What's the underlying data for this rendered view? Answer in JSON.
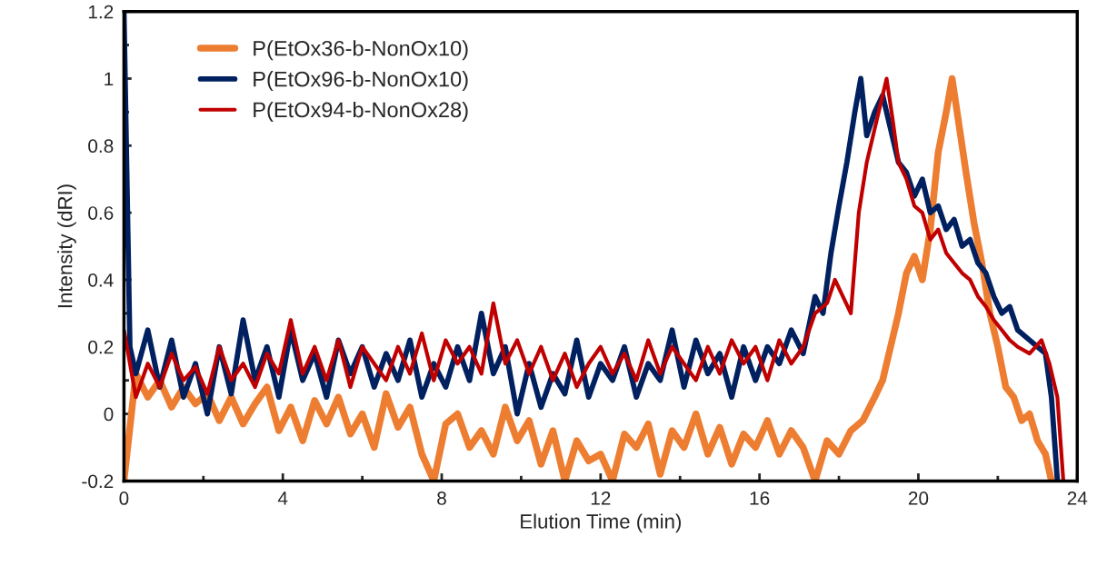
{
  "chart_data": {
    "type": "line",
    "xlabel": "Elution Time (min)",
    "ylabel": "Intensity (dRI)",
    "xlim": [
      0,
      24
    ],
    "xticks": [
      0,
      4,
      8,
      12,
      16,
      20,
      24
    ],
    "ylim": [
      -0.2,
      1.2
    ],
    "yticks": [
      -0.2,
      0,
      0.2,
      0.4,
      0.6,
      0.8,
      1,
      1.2
    ],
    "grid": false,
    "legend": "top left",
    "marker": "none",
    "line_style": "solid",
    "series": [
      {
        "name": "P(EtOx36-b-NonOx10)",
        "color": "#ed7d31",
        "x": [
          0.0,
          0.3,
          0.6,
          0.9,
          1.2,
          1.5,
          1.8,
          2.1,
          2.4,
          2.7,
          3.0,
          3.3,
          3.6,
          3.9,
          4.2,
          4.5,
          4.8,
          5.1,
          5.4,
          5.7,
          6.0,
          6.3,
          6.6,
          6.9,
          7.2,
          7.5,
          7.8,
          8.1,
          8.4,
          8.7,
          9.0,
          9.3,
          9.6,
          9.9,
          10.2,
          10.5,
          10.8,
          11.1,
          11.4,
          11.7,
          12.0,
          12.3,
          12.6,
          12.9,
          13.2,
          13.5,
          13.8,
          14.1,
          14.4,
          14.7,
          15.0,
          15.3,
          15.6,
          15.9,
          16.2,
          16.5,
          16.8,
          17.1,
          17.4,
          17.7,
          18.0,
          18.3,
          18.6,
          18.9,
          19.1,
          19.3,
          19.5,
          19.7,
          19.9,
          20.1,
          20.3,
          20.5,
          20.7,
          20.85,
          21.0,
          21.2,
          21.4,
          21.6,
          21.8,
          22.0,
          22.2,
          22.4,
          22.6,
          22.8,
          23.0,
          23.2,
          23.35
        ],
        "values": [
          -0.2,
          0.12,
          0.05,
          0.1,
          0.02,
          0.08,
          0.03,
          0.06,
          -0.02,
          0.05,
          -0.03,
          0.03,
          0.08,
          -0.05,
          0.02,
          -0.08,
          0.04,
          -0.03,
          0.05,
          -0.06,
          0.0,
          -0.1,
          0.06,
          -0.04,
          0.02,
          -0.12,
          -0.2,
          -0.03,
          0.0,
          -0.1,
          -0.05,
          -0.12,
          0.02,
          -0.08,
          -0.02,
          -0.15,
          -0.05,
          -0.2,
          -0.08,
          -0.14,
          -0.12,
          -0.2,
          -0.06,
          -0.1,
          -0.03,
          -0.18,
          -0.05,
          -0.1,
          0.0,
          -0.12,
          -0.04,
          -0.15,
          -0.06,
          -0.1,
          -0.02,
          -0.12,
          -0.05,
          -0.1,
          -0.2,
          -0.08,
          -0.12,
          -0.05,
          -0.02,
          0.05,
          0.1,
          0.2,
          0.3,
          0.42,
          0.47,
          0.4,
          0.55,
          0.78,
          0.9,
          1.0,
          0.88,
          0.72,
          0.57,
          0.45,
          0.3,
          0.2,
          0.08,
          0.05,
          -0.02,
          0.0,
          -0.08,
          -0.12,
          -0.2
        ]
      },
      {
        "name": "P(EtOx96-b-NonOx10)",
        "color": "#002060",
        "x": [
          0,
          0.15,
          0.3,
          0.6,
          0.9,
          1.2,
          1.5,
          1.8,
          2.1,
          2.4,
          2.7,
          3.0,
          3.3,
          3.6,
          3.9,
          4.2,
          4.5,
          4.8,
          5.1,
          5.4,
          5.7,
          6.0,
          6.3,
          6.6,
          6.9,
          7.2,
          7.5,
          7.8,
          8.1,
          8.4,
          8.7,
          9.0,
          9.3,
          9.6,
          9.9,
          10.2,
          10.5,
          10.8,
          11.1,
          11.4,
          11.7,
          12.0,
          12.3,
          12.6,
          12.9,
          13.2,
          13.5,
          13.8,
          14.1,
          14.4,
          14.7,
          15.0,
          15.3,
          15.6,
          15.9,
          16.2,
          16.5,
          16.8,
          17.1,
          17.4,
          17.6,
          17.8,
          18.0,
          18.2,
          18.4,
          18.55,
          18.7,
          18.9,
          19.1,
          19.3,
          19.5,
          19.7,
          19.9,
          20.1,
          20.3,
          20.5,
          20.7,
          20.9,
          21.1,
          21.3,
          21.5,
          21.7,
          21.9,
          22.1,
          22.3,
          22.5,
          22.8,
          23.0,
          23.2,
          23.35,
          23.5
        ],
        "values": [
          1.2,
          0.2,
          0.12,
          0.25,
          0.08,
          0.22,
          0.05,
          0.15,
          0.0,
          0.2,
          0.06,
          0.28,
          0.1,
          0.2,
          0.05,
          0.25,
          0.1,
          0.18,
          0.05,
          0.22,
          0.12,
          0.2,
          0.08,
          0.18,
          0.1,
          0.22,
          0.05,
          0.15,
          0.08,
          0.2,
          0.1,
          0.3,
          0.12,
          0.2,
          0.0,
          0.15,
          0.02,
          0.12,
          0.06,
          0.22,
          0.05,
          0.15,
          0.1,
          0.2,
          0.05,
          0.15,
          0.1,
          0.25,
          0.08,
          0.22,
          0.12,
          0.18,
          0.05,
          0.2,
          0.1,
          0.2,
          0.15,
          0.25,
          0.18,
          0.35,
          0.3,
          0.48,
          0.62,
          0.75,
          0.9,
          1.0,
          0.83,
          0.9,
          0.95,
          0.85,
          0.75,
          0.72,
          0.65,
          0.7,
          0.6,
          0.62,
          0.55,
          0.58,
          0.5,
          0.52,
          0.45,
          0.42,
          0.35,
          0.3,
          0.32,
          0.25,
          0.22,
          0.2,
          0.18,
          0.05,
          -0.2
        ]
      },
      {
        "name": "P(EtOx94-b-NonOx28)",
        "color": "#c00000",
        "x": [
          0,
          0.3,
          0.6,
          0.9,
          1.2,
          1.5,
          1.8,
          2.1,
          2.4,
          2.7,
          3.0,
          3.3,
          3.6,
          3.9,
          4.2,
          4.5,
          4.8,
          5.1,
          5.4,
          5.7,
          6.0,
          6.3,
          6.6,
          6.9,
          7.2,
          7.5,
          7.8,
          8.1,
          8.4,
          8.7,
          9.0,
          9.3,
          9.6,
          9.9,
          10.2,
          10.5,
          10.8,
          11.1,
          11.4,
          11.7,
          12.0,
          12.3,
          12.6,
          12.9,
          13.2,
          13.5,
          13.8,
          14.1,
          14.4,
          14.7,
          15.0,
          15.3,
          15.6,
          15.9,
          16.2,
          16.5,
          16.8,
          17.1,
          17.4,
          17.7,
          17.9,
          18.1,
          18.3,
          18.5,
          18.7,
          18.9,
          19.1,
          19.2,
          19.35,
          19.5,
          19.7,
          19.9,
          20.1,
          20.3,
          20.5,
          20.7,
          20.9,
          21.1,
          21.3,
          21.5,
          21.7,
          21.9,
          22.1,
          22.3,
          22.5,
          22.8,
          23.1,
          23.3,
          23.5,
          23.65
        ],
        "values": [
          0.25,
          0.05,
          0.15,
          0.08,
          0.18,
          0.1,
          0.14,
          0.06,
          0.2,
          0.1,
          0.15,
          0.08,
          0.18,
          0.12,
          0.28,
          0.12,
          0.2,
          0.1,
          0.22,
          0.08,
          0.2,
          0.15,
          0.1,
          0.2,
          0.12,
          0.24,
          0.1,
          0.22,
          0.15,
          0.2,
          0.12,
          0.33,
          0.15,
          0.22,
          0.12,
          0.2,
          0.1,
          0.18,
          0.08,
          0.15,
          0.2,
          0.12,
          0.18,
          0.1,
          0.22,
          0.12,
          0.2,
          0.15,
          0.1,
          0.2,
          0.12,
          0.22,
          0.15,
          0.2,
          0.1,
          0.22,
          0.15,
          0.2,
          0.3,
          0.33,
          0.4,
          0.35,
          0.3,
          0.6,
          0.75,
          0.85,
          0.95,
          1.0,
          0.88,
          0.75,
          0.7,
          0.62,
          0.6,
          0.52,
          0.55,
          0.48,
          0.45,
          0.42,
          0.4,
          0.35,
          0.32,
          0.28,
          0.25,
          0.22,
          0.2,
          0.18,
          0.22,
          0.15,
          0.05,
          -0.2
        ]
      }
    ]
  }
}
